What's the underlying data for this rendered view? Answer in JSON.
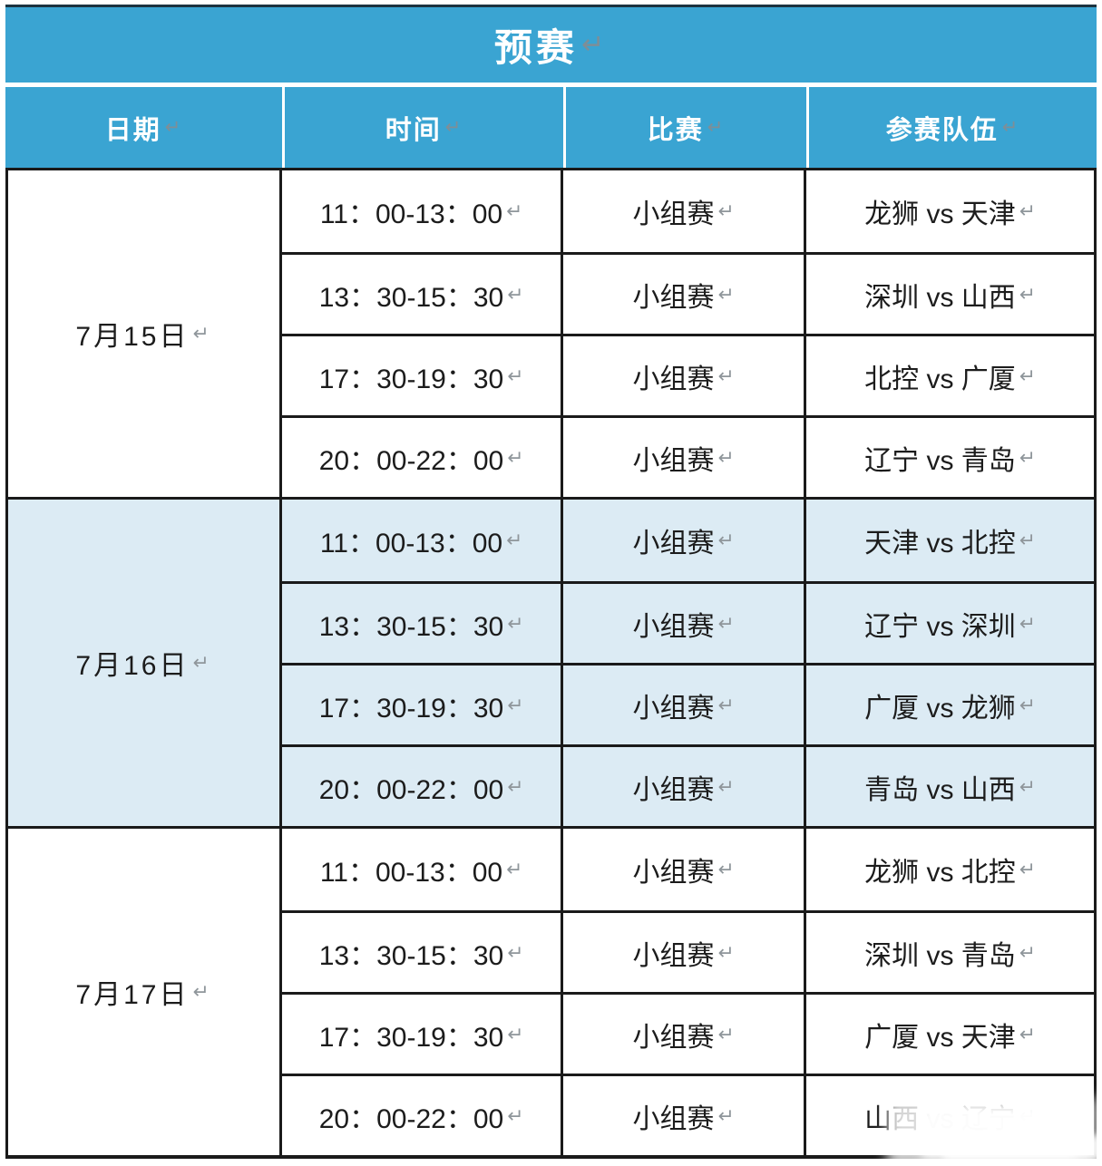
{
  "title": "预赛",
  "return_mark": "↵",
  "columns": [
    "日期",
    "时间",
    "比赛",
    "参赛队伍"
  ],
  "sections": [
    {
      "date": "7月15日",
      "rows": [
        {
          "time": "11：00-13：00",
          "match": "小组赛",
          "teams": "龙狮 vs 天津"
        },
        {
          "time": "13：30-15：30",
          "match": "小组赛",
          "teams": "深圳 vs 山西"
        },
        {
          "time": "17：30-19：30",
          "match": "小组赛",
          "teams": "北控 vs 广厦"
        },
        {
          "time": "20：00-22：00",
          "match": "小组赛",
          "teams": "辽宁 vs 青岛"
        }
      ]
    },
    {
      "date": "7月16日",
      "rows": [
        {
          "time": "11：00-13：00",
          "match": "小组赛",
          "teams": "天津 vs 北控"
        },
        {
          "time": "13：30-15：30",
          "match": "小组赛",
          "teams": "辽宁 vs 深圳"
        },
        {
          "time": "17：30-19：30",
          "match": "小组赛",
          "teams": "广厦 vs 龙狮"
        },
        {
          "time": "20：00-22：00",
          "match": "小组赛",
          "teams": "青岛 vs 山西"
        }
      ]
    },
    {
      "date": "7月17日",
      "rows": [
        {
          "time": "11：00-13：00",
          "match": "小组赛",
          "teams": "龙狮 vs 北控"
        },
        {
          "time": "13：30-15：30",
          "match": "小组赛",
          "teams": "深圳 vs 青岛"
        },
        {
          "time": "17：30-19：30",
          "match": "小组赛",
          "teams": "广厦 vs 天津"
        },
        {
          "time": "20：00-22：00",
          "match": "小组赛",
          "teams": "山西 vs 辽宁"
        }
      ]
    }
  ],
  "colors": {
    "header_blue": "#3aa4d2",
    "section_alt_bg": "#dcebf4",
    "border_black": "#1a1a1a",
    "return_mark_gray": "#8f969b"
  }
}
